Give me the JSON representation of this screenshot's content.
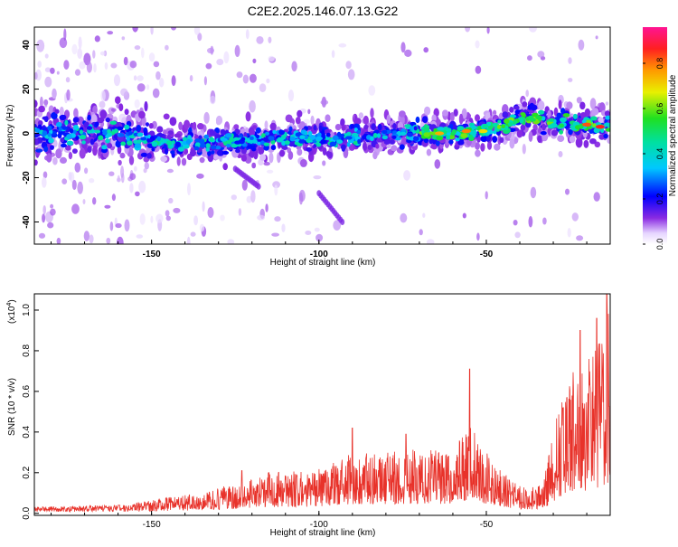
{
  "title": "C2E2.2025.146.07.13.G22",
  "chart_data": [
    {
      "type": "heatmap",
      "xlabel": "Height of straight line (km)",
      "ylabel": "Frequency (Hz)",
      "xlim": [
        -185,
        -13
      ],
      "ylim": [
        -50,
        48
      ],
      "x_ticks": [
        -150,
        -100,
        -50
      ],
      "y_ticks": [
        -40,
        -20,
        0,
        20,
        40
      ],
      "colorbar": {
        "label": "Normalized spectral amplitude",
        "range": [
          0,
          0.96
        ],
        "ticks": [
          "0.0",
          "0.2",
          "0.4",
          "0.6",
          "0.8"
        ]
      },
      "ridge_center_hz": [
        {
          "x": -185,
          "y": 0
        },
        {
          "x": -170,
          "y": 1
        },
        {
          "x": -155,
          "y": -2
        },
        {
          "x": -140,
          "y": -5
        },
        {
          "x": -130,
          "y": -4
        },
        {
          "x": -120,
          "y": -3
        },
        {
          "x": -105,
          "y": -2
        },
        {
          "x": -95,
          "y": -3
        },
        {
          "x": -85,
          "y": -1
        },
        {
          "x": -75,
          "y": 0
        },
        {
          "x": -65,
          "y": 0
        },
        {
          "x": -55,
          "y": 1
        },
        {
          "x": -45,
          "y": 3
        },
        {
          "x": -38,
          "y": 8
        },
        {
          "x": -30,
          "y": 4
        },
        {
          "x": -20,
          "y": 4
        },
        {
          "x": -13,
          "y": 3
        }
      ]
    },
    {
      "type": "line",
      "xlabel": "Height of straight line (km)",
      "ylabel": "SNR (10 * v/v)",
      "y_multiplier": "(x10",
      "y_multiplier_exp": "4",
      "y_multiplier_close": ")",
      "xlim": [
        -185,
        -13
      ],
      "ylim": [
        -0.01,
        1.08
      ],
      "x_ticks": [
        -150,
        -100,
        -50
      ],
      "y_ticks": [
        "0.0",
        "0.2",
        "0.4",
        "0.6",
        "0.8",
        "1.0"
      ],
      "color": "#e8322a",
      "envelope": [
        {
          "x": -185,
          "y": 0.03
        },
        {
          "x": -160,
          "y": 0.04
        },
        {
          "x": -150,
          "y": 0.07
        },
        {
          "x": -135,
          "y": 0.1
        },
        {
          "x": -125,
          "y": 0.15
        },
        {
          "x": -115,
          "y": 0.2
        },
        {
          "x": -100,
          "y": 0.22
        },
        {
          "x": -90,
          "y": 0.3
        },
        {
          "x": -80,
          "y": 0.3
        },
        {
          "x": -70,
          "y": 0.32
        },
        {
          "x": -60,
          "y": 0.3
        },
        {
          "x": -55,
          "y": 0.45
        },
        {
          "x": -50,
          "y": 0.3
        },
        {
          "x": -45,
          "y": 0.2
        },
        {
          "x": -38,
          "y": 0.12
        },
        {
          "x": -33,
          "y": 0.15
        },
        {
          "x": -28,
          "y": 0.55
        },
        {
          "x": -24,
          "y": 0.7
        },
        {
          "x": -20,
          "y": 0.75
        },
        {
          "x": -16,
          "y": 0.85
        },
        {
          "x": -13,
          "y": 1.05
        }
      ],
      "peaks": [
        {
          "x": -123,
          "y": 0.21
        },
        {
          "x": -115,
          "y": 0.2
        },
        {
          "x": -90,
          "y": 0.42
        },
        {
          "x": -74,
          "y": 0.39
        },
        {
          "x": -55,
          "y": 0.71
        },
        {
          "x": -27,
          "y": 0.52
        },
        {
          "x": -22,
          "y": 0.9
        },
        {
          "x": -17,
          "y": 0.96
        },
        {
          "x": -14,
          "y": 1.08
        }
      ]
    }
  ]
}
